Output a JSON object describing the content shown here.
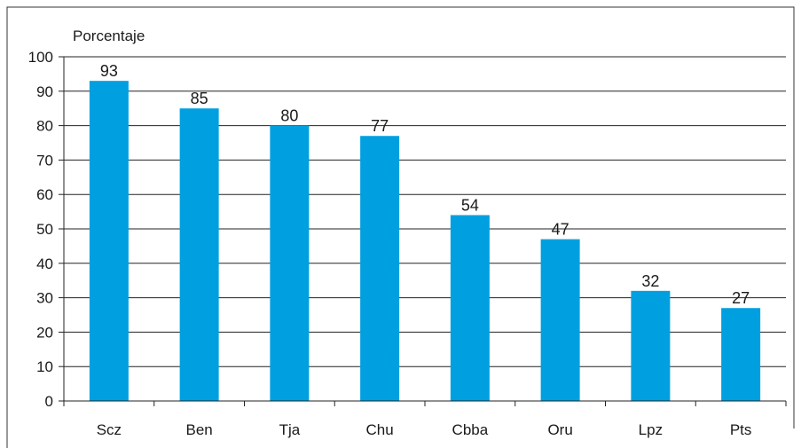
{
  "chart_data": {
    "type": "bar",
    "title": "",
    "ylabel": "Porcentaje",
    "xlabel": "",
    "categories": [
      "Scz",
      "Ben",
      "Tja",
      "Chu",
      "Cbba",
      "Oru",
      "Lpz",
      "Pts"
    ],
    "values": [
      93,
      85,
      80,
      77,
      54,
      47,
      32,
      27
    ],
    "data_labels": [
      "93",
      "85",
      "80",
      "77",
      "54",
      "47",
      "32",
      "27"
    ],
    "ylim": [
      0,
      100
    ],
    "yticks": [
      0,
      10,
      20,
      30,
      40,
      50,
      60,
      70,
      80,
      90,
      100
    ],
    "grid": true,
    "legend": "none",
    "bar_color": "#00a0e0"
  }
}
